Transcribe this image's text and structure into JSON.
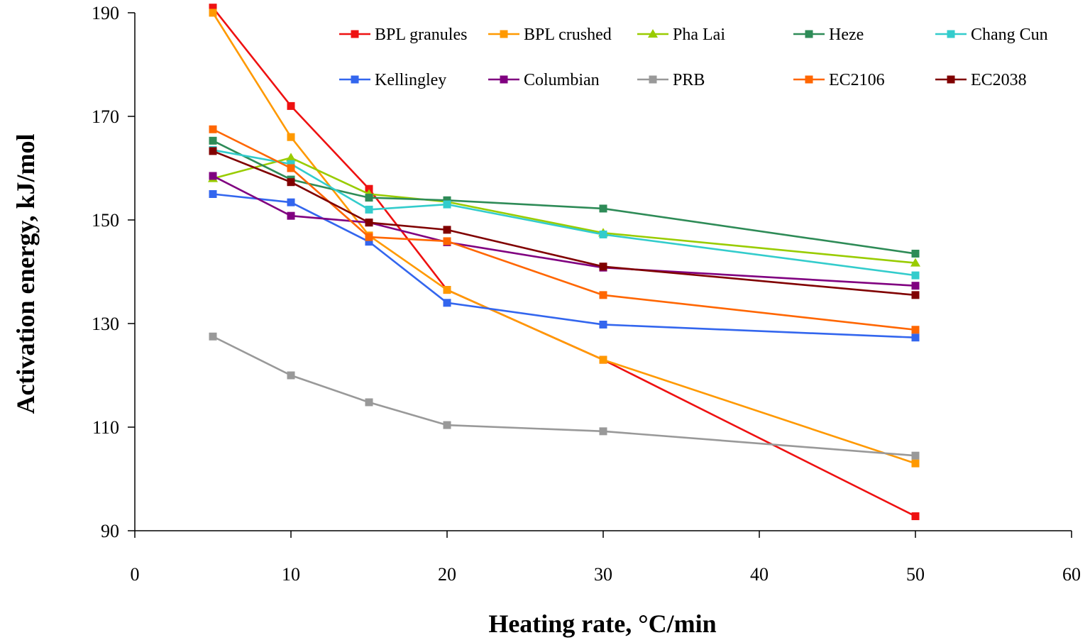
{
  "chart_data": {
    "type": "line",
    "xlabel": "Heating rate, °C/min",
    "ylabel": "Activation energy, kJ/mol",
    "xlim": [
      0,
      60
    ],
    "ylim": [
      90,
      190
    ],
    "xticks": [
      0,
      10,
      20,
      30,
      40,
      50,
      60
    ],
    "yticks": [
      90,
      110,
      130,
      150,
      170,
      190
    ],
    "grid": false,
    "legend_position": "top",
    "x": [
      5,
      10,
      15,
      20,
      30,
      50
    ],
    "series": [
      {
        "name": "BPL granules",
        "color": "#ee1111",
        "marker": "square",
        "values": [
          191,
          172,
          156,
          136.5,
          123,
          92.8
        ]
      },
      {
        "name": "BPL crushed",
        "color": "#ff9900",
        "marker": "square",
        "values": [
          190,
          166,
          147,
          136.5,
          123,
          103
        ]
      },
      {
        "name": "Pha Lai",
        "color": "#99cc00",
        "marker": "triangle",
        "values": [
          158,
          162,
          155,
          153.5,
          147.5,
          141.7
        ]
      },
      {
        "name": "Heze",
        "color": "#2e8b57",
        "marker": "square",
        "values": [
          165.3,
          157.8,
          154.3,
          153.8,
          152.2,
          143.5
        ]
      },
      {
        "name": "Chang Cun",
        "color": "#33cccc",
        "marker": "square",
        "values": [
          163.5,
          160.8,
          152,
          153,
          147.2,
          139.3
        ]
      },
      {
        "name": "Kellingley",
        "color": "#3366ee",
        "marker": "square",
        "values": [
          155,
          153.4,
          145.8,
          134,
          129.8,
          127.3
        ]
      },
      {
        "name": "Columbian",
        "color": "#800080",
        "marker": "square",
        "values": [
          158.5,
          150.8,
          149.5,
          145.7,
          140.8,
          137.3
        ]
      },
      {
        "name": "PRB",
        "color": "#999999",
        "marker": "square",
        "values": [
          127.5,
          120,
          114.8,
          110.4,
          109.2,
          104.5
        ]
      },
      {
        "name": "EC2106",
        "color": "#ff6600",
        "marker": "square",
        "values": [
          167.5,
          160,
          146.7,
          145.9,
          135.5,
          128.8
        ]
      },
      {
        "name": "EC2038",
        "color": "#800000",
        "marker": "square",
        "values": [
          163.3,
          157.3,
          149.5,
          148.1,
          141,
          135.5
        ]
      }
    ]
  }
}
